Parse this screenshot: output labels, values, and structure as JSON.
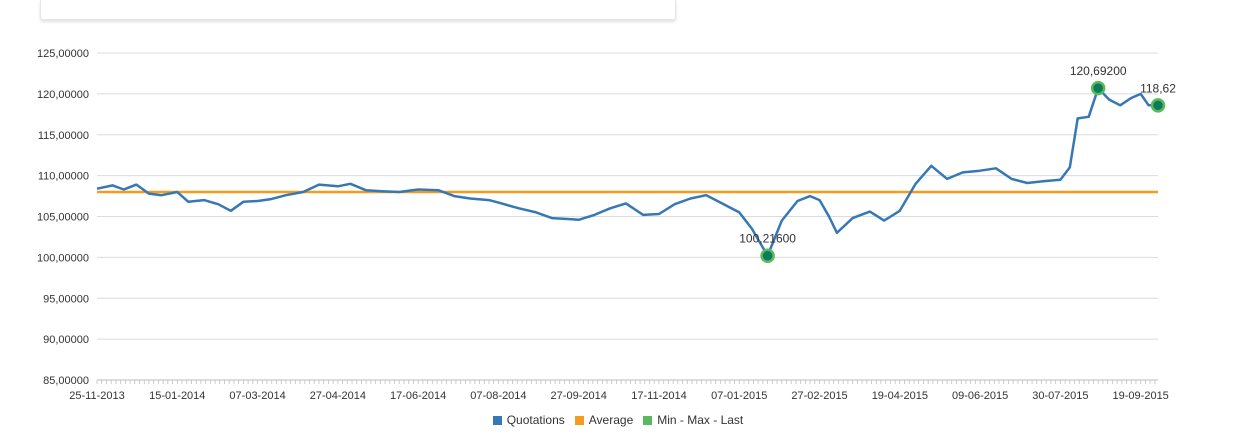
{
  "chart_data": {
    "type": "line",
    "x_tick_labels": [
      "25-11-2013",
      "15-01-2014",
      "07-03-2014",
      "27-04-2014",
      "17-06-2014",
      "07-08-2014",
      "27-09-2014",
      "17-11-2014",
      "07-01-2015",
      "27-02-2015",
      "19-04-2015",
      "09-06-2015",
      "30-07-2015",
      "19-09-2015"
    ],
    "x_range": [
      "2013-11-25",
      "2015-09-30"
    ],
    "y_tick_labels": [
      "85,00000",
      "90,00000",
      "95,00000",
      "100,00000",
      "105,00000",
      "110,00000",
      "115,00000",
      "120,00000",
      "125,00000"
    ],
    "ylim": [
      85,
      125
    ],
    "grid": "horizontal",
    "legend_position": "bottom-center",
    "series": [
      {
        "name": "Quotations",
        "color": "#3778b4",
        "points": [
          [
            "2013-11-25",
            108.4
          ],
          [
            "2013-12-05",
            108.8
          ],
          [
            "2013-12-12",
            108.3
          ],
          [
            "2013-12-20",
            108.9
          ],
          [
            "2013-12-28",
            107.8
          ],
          [
            "2014-01-05",
            107.6
          ],
          [
            "2014-01-15",
            108.0
          ],
          [
            "2014-01-22",
            106.8
          ],
          [
            "2014-02-01",
            107.0
          ],
          [
            "2014-02-10",
            106.5
          ],
          [
            "2014-02-18",
            105.7
          ],
          [
            "2014-02-26",
            106.8
          ],
          [
            "2014-03-07",
            106.9
          ],
          [
            "2014-03-15",
            107.1
          ],
          [
            "2014-03-25",
            107.6
          ],
          [
            "2014-04-05",
            108.0
          ],
          [
            "2014-04-15",
            108.9
          ],
          [
            "2014-04-27",
            108.7
          ],
          [
            "2014-05-05",
            109.0
          ],
          [
            "2014-05-15",
            108.2
          ],
          [
            "2014-05-25",
            108.1
          ],
          [
            "2014-06-05",
            108.0
          ],
          [
            "2014-06-17",
            108.3
          ],
          [
            "2014-06-30",
            108.2
          ],
          [
            "2014-07-10",
            107.5
          ],
          [
            "2014-07-20",
            107.2
          ],
          [
            "2014-08-01",
            107.0
          ],
          [
            "2014-08-07",
            106.7
          ],
          [
            "2014-08-20",
            106.0
          ],
          [
            "2014-08-31",
            105.5
          ],
          [
            "2014-09-10",
            104.8
          ],
          [
            "2014-09-20",
            104.7
          ],
          [
            "2014-09-27",
            104.6
          ],
          [
            "2014-10-07",
            105.2
          ],
          [
            "2014-10-17",
            106.0
          ],
          [
            "2014-10-27",
            106.6
          ],
          [
            "2014-11-07",
            105.2
          ],
          [
            "2014-11-17",
            105.3
          ],
          [
            "2014-11-27",
            106.5
          ],
          [
            "2014-12-07",
            107.2
          ],
          [
            "2014-12-17",
            107.6
          ],
          [
            "2014-12-27",
            106.6
          ],
          [
            "2015-01-07",
            105.5
          ],
          [
            "2015-01-15",
            103.5
          ],
          [
            "2015-01-25",
            100.2
          ],
          [
            "2015-02-03",
            104.5
          ],
          [
            "2015-02-13",
            106.9
          ],
          [
            "2015-02-21",
            107.5
          ],
          [
            "2015-02-27",
            107.0
          ],
          [
            "2015-03-05",
            105.0
          ],
          [
            "2015-03-10",
            103.0
          ],
          [
            "2015-03-20",
            104.8
          ],
          [
            "2015-03-31",
            105.6
          ],
          [
            "2015-04-09",
            104.5
          ],
          [
            "2015-04-19",
            105.7
          ],
          [
            "2015-04-29",
            109.0
          ],
          [
            "2015-05-09",
            111.2
          ],
          [
            "2015-05-19",
            109.6
          ],
          [
            "2015-05-29",
            110.4
          ],
          [
            "2015-06-09",
            110.6
          ],
          [
            "2015-06-19",
            110.9
          ],
          [
            "2015-06-29",
            109.6
          ],
          [
            "2015-07-09",
            109.1
          ],
          [
            "2015-07-19",
            109.3
          ],
          [
            "2015-07-30",
            109.5
          ],
          [
            "2015-08-05",
            111.0
          ],
          [
            "2015-08-10",
            117.0
          ],
          [
            "2015-08-17",
            117.2
          ],
          [
            "2015-08-23",
            120.7
          ],
          [
            "2015-08-30",
            119.3
          ],
          [
            "2015-09-06",
            118.6
          ],
          [
            "2015-09-13",
            119.5
          ],
          [
            "2015-09-19",
            120.0
          ],
          [
            "2015-09-24",
            118.6
          ],
          [
            "2015-09-30",
            118.6
          ]
        ]
      },
      {
        "name": "Average",
        "color": "#f39c1f",
        "value": 108.0
      },
      {
        "name": "Min - Max - Last",
        "color": "#5cb85c",
        "markers": [
          {
            "x": "2015-01-25",
            "y": 100.2,
            "label": "100,21600"
          },
          {
            "x": "2015-08-23",
            "y": 120.7,
            "label": "120,69200"
          },
          {
            "x": "2015-09-30",
            "y": 118.6,
            "label": "118,62"
          }
        ]
      }
    ]
  }
}
